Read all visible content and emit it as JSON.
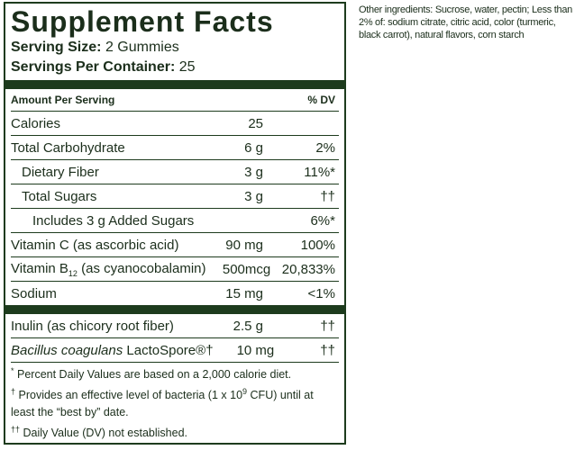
{
  "label": {
    "title": "Supplement Facts",
    "serving_size": {
      "label": "Serving Size:",
      "value": "2 Gummies"
    },
    "servings_per_container": {
      "label": "Servings Per Container:",
      "value": "25"
    },
    "header": {
      "amount": "Amount Per Serving",
      "dv": "% DV"
    },
    "rows": [
      {
        "name": "Calories",
        "amount": "25"
      },
      {
        "name": "Total Carbohydrate",
        "amount": "6 g",
        "dv": "2%"
      },
      {
        "name": "Dietary Fiber",
        "amount": "3 g",
        "dv": "11%*"
      },
      {
        "name": "Total Sugars",
        "amount": "3 g",
        "dv": "††"
      },
      {
        "name": "Includes 3 g Added Sugars",
        "dv": "6%*"
      },
      {
        "name": "Vitamin C (as ascorbic acid)",
        "amount": "90 mg",
        "dv": "100%"
      },
      {
        "name": "Vitamin B",
        "name_sub": "12",
        "name_rest": "(as cyanocobalamin)",
        "amount": "500mcg",
        "dv": "20,833%"
      },
      {
        "name": "Sodium",
        "amount": "15 mg",
        "dv": "<1%"
      },
      {
        "name": "Inulin (as chicory root fiber)",
        "amount": "2.5 g",
        "dv": "††"
      },
      {
        "name": "Bacillus coagulans",
        "name_rest": "LactoSpore®†",
        "amount": "10 mg",
        "dv": "††"
      }
    ],
    "footnotes": [
      {
        "mark": "*",
        "text": "Percent Daily Values are based on a 2,000 calorie diet."
      },
      {
        "mark": "†",
        "text": "Provides an effective level of bacteria (1 x 10",
        "sup": "9",
        "text_rest": "CFU) until at least the “best by” date."
      },
      {
        "mark": "††",
        "text": "Daily Value (DV) not established."
      }
    ]
  },
  "other_ingredients": {
    "label": "Other ingredients:",
    "text": "Sucrose, water, pectin; Less than 2% of: sodium citrate, citric acid, color (turmeric, black carrot), natural flavors, corn starch"
  }
}
